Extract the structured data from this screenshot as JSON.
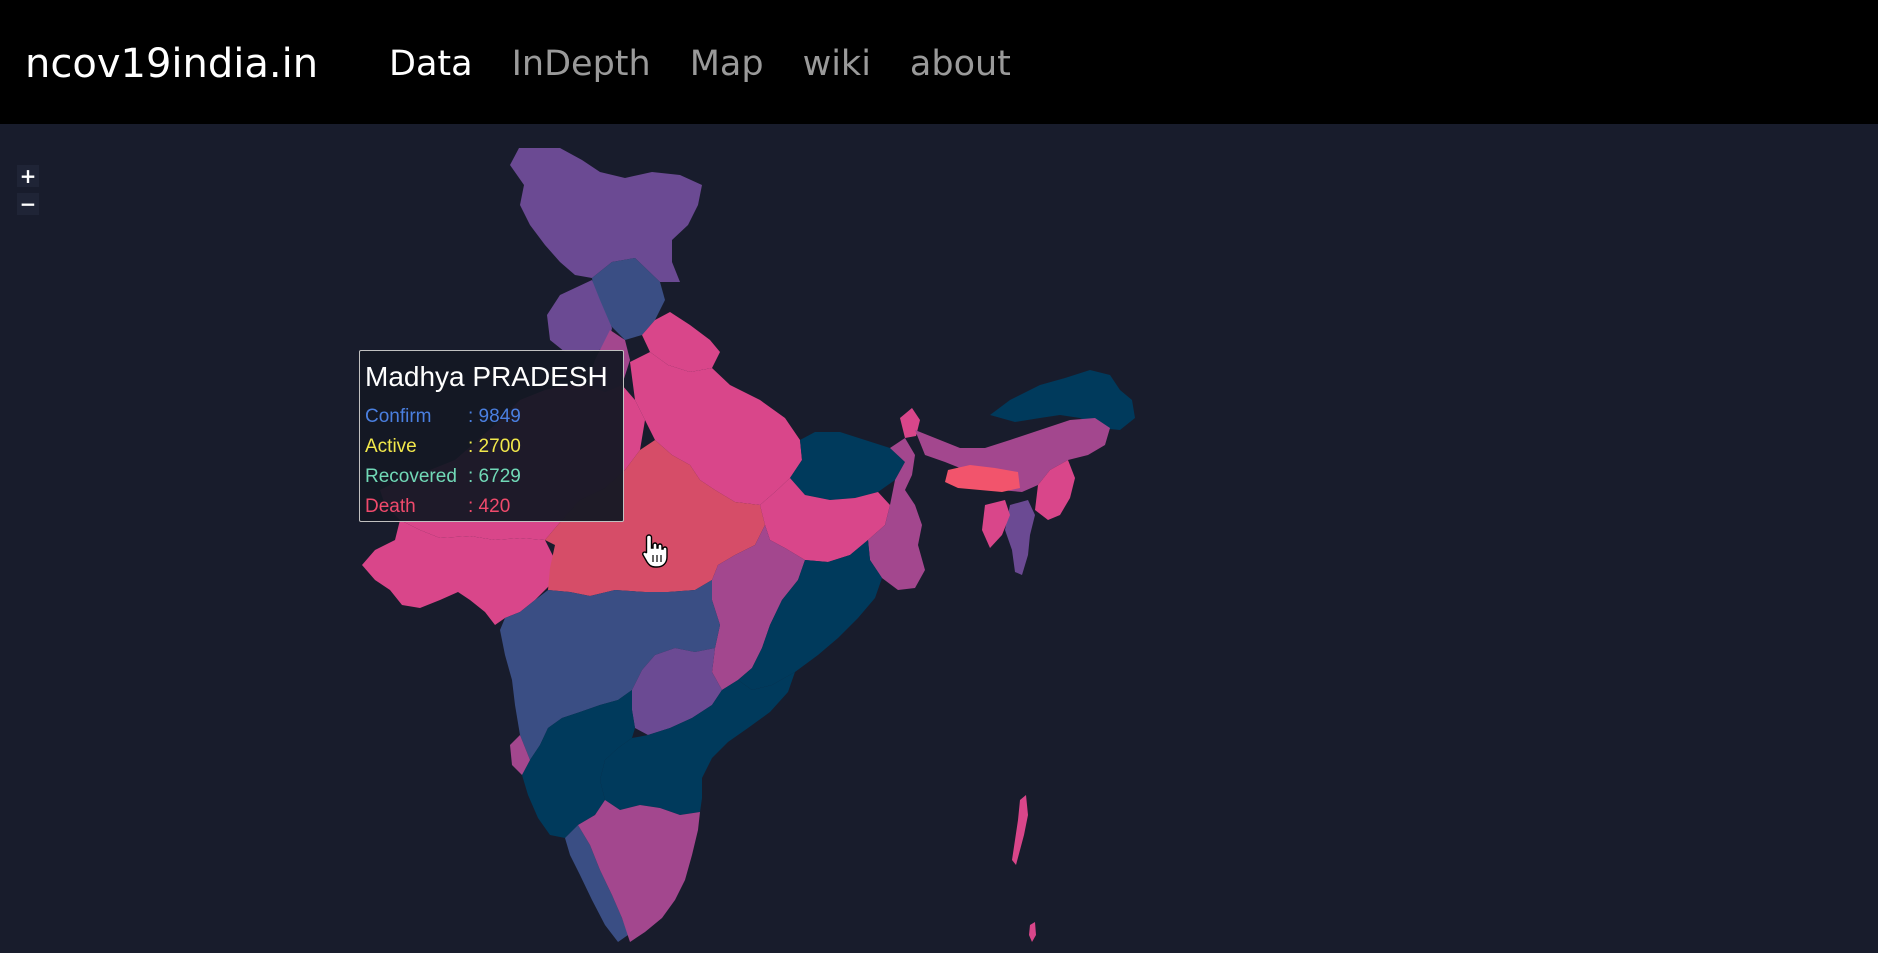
{
  "navbar": {
    "brand": "ncov19india.in",
    "links": [
      {
        "label": "Data",
        "active": true
      },
      {
        "label": "InDepth",
        "active": false
      },
      {
        "label": "Map",
        "active": false
      },
      {
        "label": "wiki",
        "active": false
      },
      {
        "label": "about",
        "active": false
      }
    ]
  },
  "zoom": {
    "in_label": "+",
    "out_label": "−"
  },
  "tooltip": {
    "title": "Madhya PRADESH",
    "rows": [
      {
        "label": "Confirm",
        "value": ":  9849",
        "color": "#4a7fe0"
      },
      {
        "label": "Active",
        "value": ": 2700",
        "color": "#f2e84b"
      },
      {
        "label": "Recovered",
        "value": ": 6729",
        "color": "#71d9b7"
      },
      {
        "label": "Death",
        "value": ": 420",
        "color": "#f04a6c"
      }
    ]
  },
  "map": {
    "background": "#181c2c",
    "palette": {
      "pink": "#d9468a",
      "red": "#d64d68",
      "magenta": "#a3478e",
      "purple": "#6b4a93",
      "slate": "#3a4e84",
      "navy": "#003a5c",
      "coral": "#f2546c"
    },
    "hovered_region": "Madhya PRADESH"
  }
}
